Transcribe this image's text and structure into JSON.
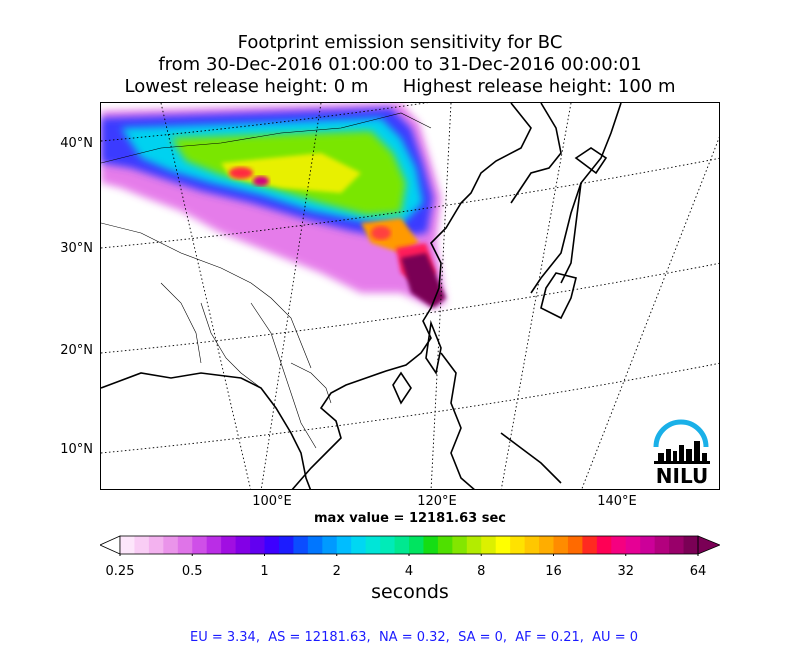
{
  "title": {
    "line1": "Footprint emission sensitivity for BC",
    "line2": "from 30-Dec-2016 01:00:00 to 31-Dec-2016 00:00:01",
    "line3": "Lowest release height: 0 m      Highest release height: 100 m"
  },
  "map": {
    "lat_labels": [
      "40°N",
      "30°N",
      "20°N",
      "10°N"
    ],
    "lon_labels": [
      "100°E",
      "120°E",
      "140°E"
    ],
    "logo_text": "NILU"
  },
  "max_value_text": "max value = 12181.63 sec",
  "colorbar": {
    "ticks": [
      "0.25",
      "0.5",
      "1",
      "2",
      "4",
      "8",
      "16",
      "32",
      "64"
    ],
    "label": "seconds",
    "colors": [
      "#fde6fb",
      "#f9cdf5",
      "#f3b2ef",
      "#ea94ea",
      "#df74e8",
      "#cf4fe8",
      "#ba2de6",
      "#a10ee2",
      "#8300e6",
      "#6200f0",
      "#3d00ff",
      "#1c1cff",
      "#0b4dff",
      "#0076ff",
      "#009aff",
      "#00bdff",
      "#00d7f2",
      "#00e5d8",
      "#00ebb8",
      "#00e890",
      "#00e460",
      "#15dd14",
      "#4fe000",
      "#83e600",
      "#b3ec00",
      "#dcf000",
      "#ffff00",
      "#ffe200",
      "#ffc700",
      "#ffad00",
      "#ff8c00",
      "#ff6a00",
      "#ff2a20",
      "#ff0055",
      "#f50080",
      "#e60095",
      "#cc0099",
      "#b3007e",
      "#99006a",
      "#7a0055"
    ]
  },
  "footer": "EU = 3.34,  AS = 12181.63,  NA = 0.32,  SA = 0,  AF = 0.21,  AU = 0"
}
